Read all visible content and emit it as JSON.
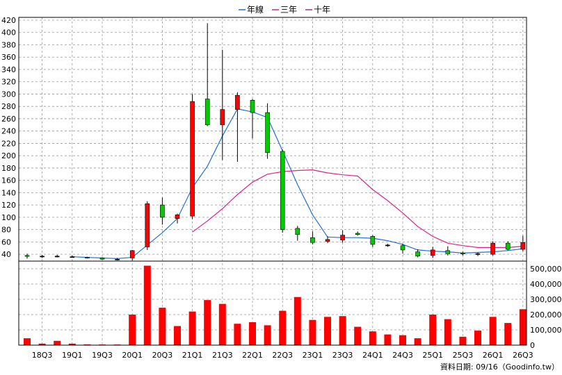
{
  "legend": [
    {
      "label": "年線",
      "color": "#1e6fe0"
    },
    {
      "label": "三年",
      "color": "#e0208a"
    },
    {
      "label": "十年",
      "color": "#a0307a"
    }
  ],
  "footer": "資料日期: 09/16（Goodinfo.tw）",
  "chart_data": [
    {
      "type": "candlestick",
      "ylim": [
        30,
        420
      ],
      "yticks": [
        40,
        60,
        80,
        100,
        120,
        140,
        160,
        180,
        200,
        220,
        240,
        260,
        280,
        300,
        320,
        340,
        360,
        380,
        400,
        420
      ],
      "x_tick_labels": [
        "18Q3",
        "19Q1",
        "19Q3",
        "20Q1",
        "20Q3",
        "21Q1",
        "21Q3",
        "22Q1",
        "22Q3",
        "23Q1",
        "23Q3",
        "24Q1",
        "24Q3",
        "25Q1",
        "25Q3",
        "26Q1",
        "26Q3"
      ],
      "candles": [
        {
          "x": "18Q2",
          "open": 38,
          "close": 37,
          "high": 41,
          "low": 33,
          "color": "#00cc00"
        },
        {
          "x": "18Q3",
          "open": 37,
          "close": 37,
          "high": 39,
          "low": 34,
          "color": "#000000"
        },
        {
          "x": "18Q4",
          "open": 37,
          "close": 37,
          "high": 39,
          "low": 35,
          "color": "#000000"
        },
        {
          "x": "19Q1",
          "open": 36,
          "close": 36,
          "high": 38,
          "low": 35,
          "color": "#000000"
        },
        {
          "x": "19Q2",
          "open": 35,
          "close": 34,
          "high": 36,
          "low": 33,
          "color": "#00cc00"
        },
        {
          "x": "19Q3",
          "open": 34,
          "close": 32,
          "high": 35,
          "low": 31,
          "color": "#00cc00"
        },
        {
          "x": "19Q4",
          "open": 32,
          "close": 32,
          "high": 34,
          "low": 30,
          "color": "#000000"
        },
        {
          "x": "20Q1",
          "open": 34,
          "close": 46,
          "high": 47,
          "low": 30,
          "color": "#ff0000"
        },
        {
          "x": "20Q2",
          "open": 52,
          "close": 122,
          "high": 126,
          "low": 47,
          "color": "#ff0000"
        },
        {
          "x": "20Q3",
          "open": 120,
          "close": 100,
          "high": 132,
          "low": 88,
          "color": "#00cc00"
        },
        {
          "x": "20Q4",
          "open": 98,
          "close": 104,
          "high": 106,
          "low": 90,
          "color": "#ff0000"
        },
        {
          "x": "21Q1",
          "open": 102,
          "close": 288,
          "high": 300,
          "low": 97,
          "color": "#ff0000"
        },
        {
          "x": "21Q2",
          "open": 292,
          "close": 250,
          "high": 415,
          "low": 248,
          "color": "#00cc00"
        },
        {
          "x": "21Q3",
          "open": 250,
          "close": 275,
          "high": 372,
          "low": 193,
          "color": "#ff0000"
        },
        {
          "x": "21Q4",
          "open": 275,
          "close": 298,
          "high": 303,
          "low": 190,
          "color": "#ff0000"
        },
        {
          "x": "22Q1",
          "open": 290,
          "close": 270,
          "high": 292,
          "low": 228,
          "color": "#00cc00"
        },
        {
          "x": "22Q2",
          "open": 270,
          "close": 205,
          "high": 285,
          "low": 195,
          "color": "#00cc00"
        },
        {
          "x": "22Q3",
          "open": 207,
          "close": 80,
          "high": 210,
          "low": 75,
          "color": "#00cc00"
        },
        {
          "x": "22Q4",
          "open": 82,
          "close": 72,
          "high": 86,
          "low": 62,
          "color": "#00cc00"
        },
        {
          "x": "23Q1",
          "open": 67,
          "close": 59,
          "high": 77,
          "low": 56,
          "color": "#00cc00"
        },
        {
          "x": "23Q2",
          "open": 61,
          "close": 64,
          "high": 69,
          "low": 58,
          "color": "#ff0000"
        },
        {
          "x": "23Q3",
          "open": 63,
          "close": 71,
          "high": 79,
          "low": 59,
          "color": "#ff0000"
        },
        {
          "x": "23Q4",
          "open": 74,
          "close": 72,
          "high": 77,
          "low": 70,
          "color": "#00cc00"
        },
        {
          "x": "24Q1",
          "open": 69,
          "close": 56,
          "high": 71,
          "low": 52,
          "color": "#00cc00"
        },
        {
          "x": "24Q2",
          "open": 55,
          "close": 55,
          "high": 57,
          "low": 52,
          "color": "#000000"
        },
        {
          "x": "24Q3",
          "open": 54,
          "close": 47,
          "high": 57,
          "low": 41,
          "color": "#00cc00"
        },
        {
          "x": "24Q4",
          "open": 44,
          "close": 37,
          "high": 48,
          "low": 35,
          "color": "#00cc00"
        },
        {
          "x": "25Q1",
          "open": 38,
          "close": 47,
          "high": 52,
          "low": 34,
          "color": "#ff0000"
        },
        {
          "x": "25Q2",
          "open": 46,
          "close": 41,
          "high": 53,
          "low": 38,
          "color": "#00cc00"
        },
        {
          "x": "25Q3",
          "open": 42,
          "close": 41,
          "high": 44,
          "low": 38,
          "color": "#00cc00"
        },
        {
          "x": "25Q4",
          "open": 41,
          "close": 41,
          "high": 43,
          "low": 37,
          "color": "#000000"
        },
        {
          "x": "26Q1",
          "open": 40,
          "close": 58,
          "high": 61,
          "low": 38,
          "color": "#ff0000"
        },
        {
          "x": "26Q2",
          "open": 58,
          "close": 48,
          "high": 61,
          "low": 46,
          "color": "#00cc00"
        },
        {
          "x": "26Q3",
          "open": 48,
          "close": 59,
          "high": 70,
          "low": 45,
          "color": "#ff0000"
        }
      ],
      "series": [
        {
          "name": "年線",
          "color": "#1e6fe0",
          "points": [
            [
              "19Q1",
              36
            ],
            [
              "19Q2",
              35
            ],
            [
              "19Q3",
              34
            ],
            [
              "19Q4",
              33
            ],
            [
              "20Q1",
              35
            ],
            [
              "20Q2",
              55
            ],
            [
              "20Q3",
              75
            ],
            [
              "20Q4",
              98
            ],
            [
              "21Q1",
              148
            ],
            [
              "21Q2",
              183
            ],
            [
              "21Q3",
              232
            ],
            [
              "21Q4",
              276
            ],
            [
              "22Q1",
              271
            ],
            [
              "22Q2",
              262
            ],
            [
              "22Q3",
              208
            ],
            [
              "22Q4",
              153
            ],
            [
              "23Q1",
              104
            ],
            [
              "23Q2",
              68
            ],
            [
              "23Q3",
              67
            ],
            [
              "23Q4",
              67
            ],
            [
              "24Q1",
              66
            ],
            [
              "24Q2",
              62
            ],
            [
              "24Q3",
              56
            ],
            [
              "24Q4",
              47
            ],
            [
              "25Q1",
              45
            ],
            [
              "25Q2",
              44
            ],
            [
              "25Q3",
              42
            ],
            [
              "25Q4",
              43
            ],
            [
              "26Q1",
              44
            ],
            [
              "26Q2",
              46
            ],
            [
              "26Q3",
              49
            ]
          ]
        },
        {
          "name": "三年",
          "color": "#e0208a",
          "points": [
            [
              "21Q1",
              76
            ],
            [
              "21Q2",
              94
            ],
            [
              "21Q3",
              114
            ],
            [
              "21Q4",
              137
            ],
            [
              "22Q1",
              157
            ],
            [
              "22Q2",
              170
            ],
            [
              "22Q3",
              174
            ],
            [
              "22Q4",
              176
            ],
            [
              "23Q1",
              177
            ],
            [
              "23Q2",
              172
            ],
            [
              "23Q3",
              169
            ],
            [
              "23Q4",
              167
            ],
            [
              "24Q1",
              145
            ],
            [
              "24Q2",
              127
            ],
            [
              "24Q3",
              107
            ],
            [
              "24Q4",
              85
            ],
            [
              "25Q1",
              69
            ],
            [
              "25Q2",
              58
            ],
            [
              "25Q3",
              54
            ],
            [
              "25Q4",
              51
            ],
            [
              "26Q1",
              51
            ],
            [
              "26Q2",
              51
            ],
            [
              "26Q3",
              53
            ]
          ]
        }
      ]
    },
    {
      "type": "bar",
      "ylim": [
        0,
        550000
      ],
      "yticks": [
        0,
        100000,
        200000,
        300000,
        400000,
        500000
      ],
      "ytick_labels": [
        "0",
        "100,000",
        "200,000",
        "300,000",
        "400,000",
        "500,000"
      ],
      "categories": [
        "18Q2",
        "18Q3",
        "18Q4",
        "19Q1",
        "19Q2",
        "19Q3",
        "19Q4",
        "20Q1",
        "20Q2",
        "20Q3",
        "20Q4",
        "21Q1",
        "21Q2",
        "21Q3",
        "21Q4",
        "22Q1",
        "22Q2",
        "22Q3",
        "22Q4",
        "23Q1",
        "23Q2",
        "23Q3",
        "23Q4",
        "24Q1",
        "24Q2",
        "24Q3",
        "24Q4",
        "25Q1",
        "25Q2",
        "25Q3",
        "25Q4",
        "26Q1",
        "26Q2",
        "26Q3"
      ],
      "values": [
        45000,
        10000,
        28000,
        10000,
        5000,
        4000,
        4000,
        200000,
        520000,
        245000,
        125000,
        220000,
        295000,
        270000,
        140000,
        150000,
        130000,
        225000,
        315000,
        165000,
        185000,
        190000,
        120000,
        90000,
        70000,
        65000,
        45000,
        200000,
        170000,
        55000,
        95000,
        185000,
        145000,
        235000
      ],
      "color": "#ff0000"
    }
  ]
}
